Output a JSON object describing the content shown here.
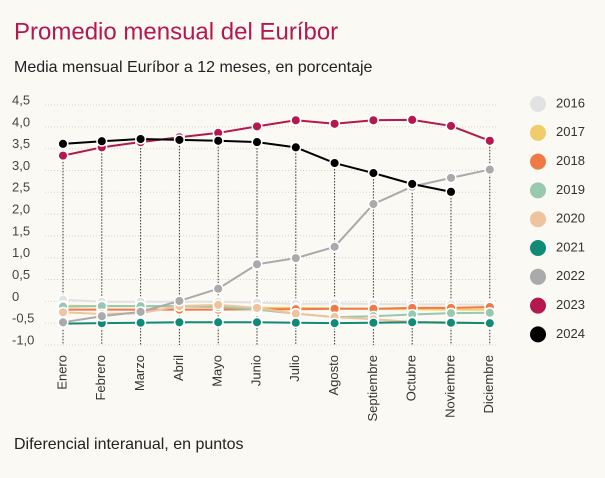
{
  "chart_data": {
    "type": "line",
    "title": "Promedio mensual del Euríbor",
    "subtitle": "Media mensual Euríbor a 12 meses, en porcentaje",
    "note": "Diferencial interanual, en puntos",
    "categories": [
      "Enero",
      "Febrero",
      "Marzo",
      "Abril",
      "Mayo",
      "Junio",
      "Julio",
      "Agosto",
      "Septiembre",
      "Octubre",
      "Noviembre",
      "Diciembre"
    ],
    "ylim": [
      -1.0,
      4.5
    ],
    "yticks": [
      {
        "value": 4.5,
        "label": "4,5"
      },
      {
        "value": 4.0,
        "label": "4,0"
      },
      {
        "value": 3.5,
        "label": "3,5"
      },
      {
        "value": 3.0,
        "label": "3,0"
      },
      {
        "value": 2.5,
        "label": "2,5"
      },
      {
        "value": 2.0,
        "label": "2,0"
      },
      {
        "value": 1.5,
        "label": "1,5"
      },
      {
        "value": 1.0,
        "label": "1,0"
      },
      {
        "value": 0.5,
        "label": "0,5"
      },
      0,
      {
        "value": -0.5,
        "label": "-0,5"
      },
      {
        "value": -1.0,
        "label": "-1,0"
      }
    ],
    "grid": true,
    "legend": "right",
    "series": [
      {
        "name": "2016",
        "color": "#e2e2e2",
        "values": [
          0.04,
          -0.01,
          -0.01,
          -0.01,
          -0.01,
          -0.03,
          -0.06,
          -0.05,
          -0.06,
          -0.07,
          -0.07,
          -0.08
        ]
      },
      {
        "name": "2017",
        "color": "#f0cd6a",
        "values": [
          -0.1,
          -0.11,
          -0.11,
          -0.12,
          -0.13,
          -0.15,
          -0.15,
          -0.16,
          -0.17,
          -0.18,
          -0.19,
          -0.19
        ]
      },
      {
        "name": "2018",
        "color": "#f07a45",
        "values": [
          -0.19,
          -0.19,
          -0.19,
          -0.19,
          -0.19,
          -0.18,
          -0.18,
          -0.17,
          -0.17,
          -0.15,
          -0.15,
          -0.13
        ]
      },
      {
        "name": "2019",
        "color": "#98c9ae",
        "values": [
          -0.12,
          -0.11,
          -0.11,
          -0.11,
          -0.13,
          -0.19,
          -0.28,
          -0.36,
          -0.34,
          -0.3,
          -0.27,
          -0.26
        ]
      },
      {
        "name": "2020",
        "color": "#efc39d",
        "values": [
          -0.25,
          -0.29,
          -0.27,
          -0.11,
          -0.08,
          -0.15,
          -0.28,
          -0.36,
          -0.41,
          -0.47,
          -0.48,
          -0.5
        ]
      },
      {
        "name": "2021",
        "color": "#128a78",
        "values": [
          -0.51,
          -0.5,
          -0.49,
          -0.48,
          -0.48,
          -0.48,
          -0.49,
          -0.5,
          -0.49,
          -0.48,
          -0.49,
          -0.5
        ]
      },
      {
        "name": "2022",
        "color": "#aaaaaa",
        "values": [
          -0.48,
          -0.34,
          -0.24,
          0.01,
          0.29,
          0.85,
          0.99,
          1.25,
          2.23,
          2.63,
          2.83,
          3.02
        ]
      },
      {
        "name": "2023",
        "color": "#b5174f",
        "values": [
          3.34,
          3.53,
          3.65,
          3.76,
          3.86,
          4.01,
          4.15,
          4.07,
          4.15,
          4.16,
          4.02,
          3.68
        ]
      },
      {
        "name": "2024",
        "color": "#000000",
        "values": [
          3.61,
          3.67,
          3.72,
          3.7,
          3.68,
          3.65,
          3.53,
          3.17,
          2.94,
          2.69,
          2.51,
          null
        ]
      }
    ]
  }
}
